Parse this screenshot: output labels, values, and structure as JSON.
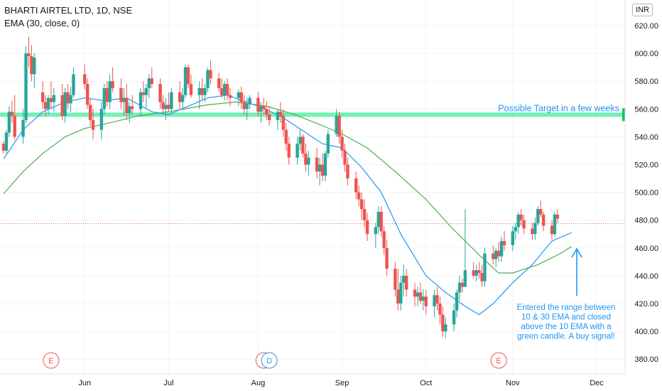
{
  "header": {
    "title": "BHARTI AIRTEL LTD, 1D, NSE",
    "indicator": "EMA (30, close, 0)",
    "currency": "INR"
  },
  "colors": {
    "up": "#26a69a",
    "down": "#ef5350",
    "ema10": "#2196f3",
    "ema30": "#4caf50",
    "target_line": "#00e676",
    "annotation_text": "#2196f3",
    "events": "#ef5350",
    "dividend": "#2196f3"
  },
  "annotations": {
    "target_label": "Possible Target in a few weeks",
    "target_price": "555.90",
    "entry_note": [
      "Entered the range between",
      "10 & 30 EMA and closed",
      "above the 10 EMA with a",
      "green candle. A buy signal!"
    ]
  },
  "events": [
    {
      "label": "E",
      "date": "2021-05-20",
      "kind": "earnings"
    },
    {
      "label": "E",
      "date": "2021-08-04",
      "kind": "earnings"
    },
    {
      "label": "D",
      "date": "2021-08-06",
      "kind": "dividend"
    },
    {
      "label": "E",
      "date": "2021-10-27",
      "kind": "earnings"
    }
  ],
  "chart_data": {
    "type": "candlestick",
    "x_axis": {
      "labels": [
        "Jun",
        "Jul",
        "Aug",
        "Sep",
        "Oct",
        "Nov",
        "Dec"
      ],
      "label_dates": [
        "2021-06-01",
        "2021-07-01",
        "2021-08-02",
        "2021-09-01",
        "2021-10-01",
        "2021-11-01",
        "2021-12-01"
      ]
    },
    "y_axis": {
      "ticks": [
        "380.00",
        "400.00",
        "420.00",
        "440.00",
        "460.00",
        "480.00",
        "500.00",
        "520.00",
        "540.00",
        "560.00",
        "580.00",
        "600.00",
        "620.00"
      ],
      "range": [
        375,
        627
      ]
    },
    "current_price_level": 477.5,
    "target_level": 555.9,
    "series": [
      {
        "name": "EMA (30, close, 0)",
        "points": [
          [
            "2021-05-03",
            499
          ],
          [
            "2021-05-10",
            515
          ],
          [
            "2021-05-17",
            528
          ],
          [
            "2021-05-25",
            540
          ],
          [
            "2021-06-01",
            546
          ],
          [
            "2021-06-10",
            550
          ],
          [
            "2021-06-20",
            555
          ],
          [
            "2021-07-01",
            558
          ],
          [
            "2021-07-15",
            563
          ],
          [
            "2021-07-25",
            565
          ],
          [
            "2021-08-05",
            562
          ],
          [
            "2021-08-15",
            556
          ],
          [
            "2021-08-25",
            548
          ],
          [
            "2021-09-01",
            542
          ],
          [
            "2021-09-10",
            532
          ],
          [
            "2021-09-20",
            515
          ],
          [
            "2021-10-01",
            495
          ],
          [
            "2021-10-10",
            475
          ],
          [
            "2021-10-20",
            455
          ],
          [
            "2021-10-27",
            442
          ],
          [
            "2021-11-01",
            442
          ],
          [
            "2021-11-10",
            448
          ],
          [
            "2021-11-18",
            456
          ],
          [
            "2021-11-22",
            461
          ]
        ]
      },
      {
        "name": "EMA 10",
        "points": [
          [
            "2021-05-03",
            524
          ],
          [
            "2021-05-10",
            545
          ],
          [
            "2021-05-17",
            558
          ],
          [
            "2021-05-25",
            565
          ],
          [
            "2021-06-01",
            568
          ],
          [
            "2021-06-08",
            566
          ],
          [
            "2021-06-16",
            568
          ],
          [
            "2021-06-25",
            558
          ],
          [
            "2021-07-01",
            556
          ],
          [
            "2021-07-15",
            568
          ],
          [
            "2021-07-22",
            570
          ],
          [
            "2021-08-02",
            562
          ],
          [
            "2021-08-10",
            555
          ],
          [
            "2021-08-16",
            547
          ],
          [
            "2021-08-25",
            535
          ],
          [
            "2021-09-01",
            532
          ],
          [
            "2021-09-08",
            518
          ],
          [
            "2021-09-15",
            500
          ],
          [
            "2021-09-22",
            470
          ],
          [
            "2021-10-01",
            440
          ],
          [
            "2021-10-08",
            428
          ],
          [
            "2021-10-15",
            418
          ],
          [
            "2021-10-20",
            412
          ],
          [
            "2021-10-25",
            420
          ],
          [
            "2021-11-01",
            435
          ],
          [
            "2021-11-08",
            448
          ],
          [
            "2021-11-15",
            465
          ],
          [
            "2021-11-22",
            471
          ]
        ]
      }
    ],
    "candles": [
      [
        "2021-05-03",
        535,
        537,
        528,
        530
      ],
      [
        "2021-05-04",
        530,
        545,
        528,
        543
      ],
      [
        "2021-05-05",
        543,
        562,
        540,
        558
      ],
      [
        "2021-05-06",
        558,
        566,
        550,
        555
      ],
      [
        "2021-05-07",
        555,
        570,
        538,
        540
      ],
      [
        "2021-05-10",
        540,
        560,
        535,
        552
      ],
      [
        "2021-05-11",
        552,
        605,
        550,
        600
      ],
      [
        "2021-05-12",
        600,
        612,
        590,
        598
      ],
      [
        "2021-05-13",
        598,
        606,
        580,
        585
      ],
      [
        "2021-05-14",
        585,
        600,
        575,
        597
      ],
      [
        "2021-05-17",
        572,
        580,
        560,
        565
      ],
      [
        "2021-05-18",
        565,
        570,
        555,
        560
      ],
      [
        "2021-05-19",
        560,
        570,
        556,
        568
      ],
      [
        "2021-05-20",
        568,
        580,
        560,
        565
      ],
      [
        "2021-05-21",
        565,
        575,
        558,
        570
      ],
      [
        "2021-05-24",
        570,
        578,
        552,
        555
      ],
      [
        "2021-05-25",
        555,
        575,
        550,
        572
      ],
      [
        "2021-05-26",
        572,
        578,
        560,
        564
      ],
      [
        "2021-05-27",
        564,
        576,
        558,
        570
      ],
      [
        "2021-05-28",
        570,
        590,
        568,
        585
      ],
      [
        "2021-06-01",
        585,
        592,
        574,
        578
      ],
      [
        "2021-06-02",
        578,
        582,
        560,
        563
      ],
      [
        "2021-06-03",
        563,
        568,
        548,
        552
      ],
      [
        "2021-06-04",
        552,
        560,
        538,
        545
      ],
      [
        "2021-06-07",
        545,
        565,
        538,
        560
      ],
      [
        "2021-06-08",
        560,
        578,
        556,
        575
      ],
      [
        "2021-06-09",
        575,
        580,
        562,
        565
      ],
      [
        "2021-06-10",
        565,
        585,
        560,
        580
      ],
      [
        "2021-06-11",
        580,
        590,
        572,
        575
      ],
      [
        "2021-06-14",
        575,
        582,
        560,
        565
      ],
      [
        "2021-06-15",
        565,
        575,
        555,
        568
      ],
      [
        "2021-06-16",
        568,
        578,
        552,
        557
      ],
      [
        "2021-06-17",
        557,
        565,
        550,
        562
      ],
      [
        "2021-06-18",
        562,
        570,
        556,
        560
      ],
      [
        "2021-06-21",
        560,
        575,
        555,
        572
      ],
      [
        "2021-06-22",
        572,
        580,
        565,
        570
      ],
      [
        "2021-06-23",
        570,
        578,
        560,
        575
      ],
      [
        "2021-06-24",
        575,
        585,
        568,
        582
      ],
      [
        "2021-06-25",
        582,
        590,
        575,
        578
      ],
      [
        "2021-06-28",
        578,
        582,
        560,
        565
      ],
      [
        "2021-06-29",
        565,
        570,
        556,
        560
      ],
      [
        "2021-06-30",
        560,
        568,
        552,
        563
      ],
      [
        "2021-07-01",
        563,
        572,
        558,
        560
      ],
      [
        "2021-07-02",
        560,
        575,
        556,
        572
      ],
      [
        "2021-07-05",
        572,
        580,
        560,
        565
      ],
      [
        "2021-07-06",
        565,
        575,
        560,
        570
      ],
      [
        "2021-07-07",
        570,
        592,
        568,
        590
      ],
      [
        "2021-07-08",
        590,
        592,
        575,
        578
      ],
      [
        "2021-07-09",
        578,
        585,
        568,
        570
      ],
      [
        "2021-07-12",
        570,
        580,
        560,
        575
      ],
      [
        "2021-07-13",
        575,
        582,
        566,
        570
      ],
      [
        "2021-07-14",
        570,
        578,
        565,
        575
      ],
      [
        "2021-07-15",
        575,
        590,
        572,
        588
      ],
      [
        "2021-07-16",
        588,
        595,
        578,
        582
      ],
      [
        "2021-07-19",
        582,
        586,
        572,
        575
      ],
      [
        "2021-07-20",
        575,
        582,
        568,
        570
      ],
      [
        "2021-07-21",
        570,
        580,
        566,
        578
      ],
      [
        "2021-07-22",
        578,
        582,
        566,
        570
      ],
      [
        "2021-07-23",
        570,
        575,
        562,
        568
      ],
      [
        "2021-07-26",
        568,
        574,
        562,
        572
      ],
      [
        "2021-07-27",
        572,
        576,
        560,
        565
      ],
      [
        "2021-07-28",
        565,
        570,
        556,
        560
      ],
      [
        "2021-07-29",
        560,
        568,
        552,
        564
      ],
      [
        "2021-07-30",
        564,
        570,
        560,
        568
      ],
      [
        "2021-08-02",
        568,
        572,
        555,
        558
      ],
      [
        "2021-08-03",
        558,
        565,
        550,
        562
      ],
      [
        "2021-08-04",
        562,
        568,
        556,
        560
      ],
      [
        "2021-08-05",
        560,
        566,
        552,
        556
      ],
      [
        "2021-08-06",
        556,
        562,
        548,
        552
      ],
      [
        "2021-08-09",
        552,
        560,
        545,
        558
      ],
      [
        "2021-08-10",
        558,
        565,
        550,
        555
      ],
      [
        "2021-08-11",
        555,
        560,
        540,
        545
      ],
      [
        "2021-08-12",
        545,
        550,
        530,
        535
      ],
      [
        "2021-08-13",
        535,
        540,
        520,
        525
      ],
      [
        "2021-08-16",
        525,
        540,
        520,
        535
      ],
      [
        "2021-08-17",
        535,
        545,
        530,
        540
      ],
      [
        "2021-08-18",
        540,
        542,
        525,
        528
      ],
      [
        "2021-08-19",
        528,
        535,
        515,
        520
      ],
      [
        "2021-08-20",
        520,
        530,
        512,
        525
      ],
      [
        "2021-08-23",
        525,
        532,
        510,
        515
      ],
      [
        "2021-08-24",
        515,
        525,
        505,
        520
      ],
      [
        "2021-08-25",
        520,
        528,
        508,
        512
      ],
      [
        "2021-08-26",
        512,
        530,
        508,
        528
      ],
      [
        "2021-08-27",
        528,
        545,
        525,
        542
      ],
      [
        "2021-08-30",
        542,
        560,
        540,
        555
      ],
      [
        "2021-08-31",
        555,
        558,
        535,
        540
      ],
      [
        "2021-09-01",
        540,
        545,
        525,
        530
      ],
      [
        "2021-09-02",
        530,
        535,
        515,
        520
      ],
      [
        "2021-09-03",
        520,
        525,
        505,
        510
      ],
      [
        "2021-09-06",
        510,
        515,
        495,
        500
      ],
      [
        "2021-09-07",
        500,
        505,
        490,
        495
      ],
      [
        "2021-09-08",
        495,
        500,
        480,
        488
      ],
      [
        "2021-09-09",
        488,
        495,
        475,
        480
      ],
      [
        "2021-09-10",
        480,
        485,
        465,
        470
      ],
      [
        "2021-09-13",
        470,
        478,
        460,
        475
      ],
      [
        "2021-09-14",
        475,
        490,
        470,
        486
      ],
      [
        "2021-09-15",
        486,
        490,
        468,
        472
      ],
      [
        "2021-09-16",
        472,
        476,
        455,
        460
      ],
      [
        "2021-09-17",
        460,
        466,
        440,
        445
      ],
      [
        "2021-09-20",
        445,
        450,
        425,
        430
      ],
      [
        "2021-09-21",
        430,
        445,
        415,
        420
      ],
      [
        "2021-09-22",
        420,
        440,
        415,
        435
      ],
      [
        "2021-09-23",
        435,
        448,
        425,
        440
      ],
      [
        "2021-09-24",
        440,
        445,
        425,
        430
      ],
      [
        "2021-09-27",
        430,
        435,
        418,
        425
      ],
      [
        "2021-09-28",
        425,
        432,
        418,
        428
      ],
      [
        "2021-09-29",
        428,
        435,
        420,
        422
      ],
      [
        "2021-09-30",
        422,
        430,
        415,
        425
      ],
      [
        "2021-10-01",
        425,
        430,
        412,
        418
      ],
      [
        "2021-10-04",
        418,
        430,
        410,
        426
      ],
      [
        "2021-10-05",
        426,
        432,
        415,
        420
      ],
      [
        "2021-10-06",
        420,
        425,
        405,
        412
      ],
      [
        "2021-10-07",
        412,
        418,
        396,
        400
      ],
      [
        "2021-10-08",
        400,
        410,
        395,
        405
      ],
      [
        "2021-10-11",
        405,
        420,
        400,
        415
      ],
      [
        "2021-10-12",
        415,
        430,
        410,
        428
      ],
      [
        "2021-10-13",
        428,
        440,
        422,
        435
      ],
      [
        "2021-10-14",
        435,
        438,
        428,
        432
      ],
      [
        "2021-10-15",
        432,
        488,
        432,
        444
      ],
      [
        "2021-10-18",
        444,
        450,
        438,
        440
      ],
      [
        "2021-10-19",
        440,
        448,
        436,
        444
      ],
      [
        "2021-10-20",
        444,
        450,
        438,
        442
      ],
      [
        "2021-10-21",
        442,
        448,
        432,
        436
      ],
      [
        "2021-10-22",
        436,
        460,
        432,
        456
      ],
      [
        "2021-10-25",
        456,
        462,
        448,
        452
      ],
      [
        "2021-10-26",
        452,
        460,
        446,
        458
      ],
      [
        "2021-10-27",
        458,
        464,
        450,
        454
      ],
      [
        "2021-10-28",
        454,
        468,
        450,
        465
      ],
      [
        "2021-10-29",
        465,
        472,
        458,
        462
      ],
      [
        "2021-11-01",
        462,
        476,
        458,
        472
      ],
      [
        "2021-11-02",
        472,
        478,
        466,
        475
      ],
      [
        "2021-11-03",
        475,
        486,
        470,
        484
      ],
      [
        "2021-11-04",
        484,
        488,
        476,
        480
      ],
      [
        "2021-11-05",
        480,
        484,
        470,
        474
      ],
      [
        "2021-11-08",
        474,
        478,
        466,
        470
      ],
      [
        "2021-11-09",
        470,
        482,
        466,
        478
      ],
      [
        "2021-11-10",
        478,
        490,
        476,
        488
      ],
      [
        "2021-11-11",
        488,
        494,
        482,
        484
      ],
      [
        "2021-11-12",
        484,
        486,
        472,
        476
      ],
      [
        "2021-11-15",
        476,
        480,
        466,
        470
      ],
      [
        "2021-11-16",
        470,
        486,
        468,
        484
      ],
      [
        "2021-11-17",
        484,
        488,
        478,
        481
      ]
    ]
  }
}
